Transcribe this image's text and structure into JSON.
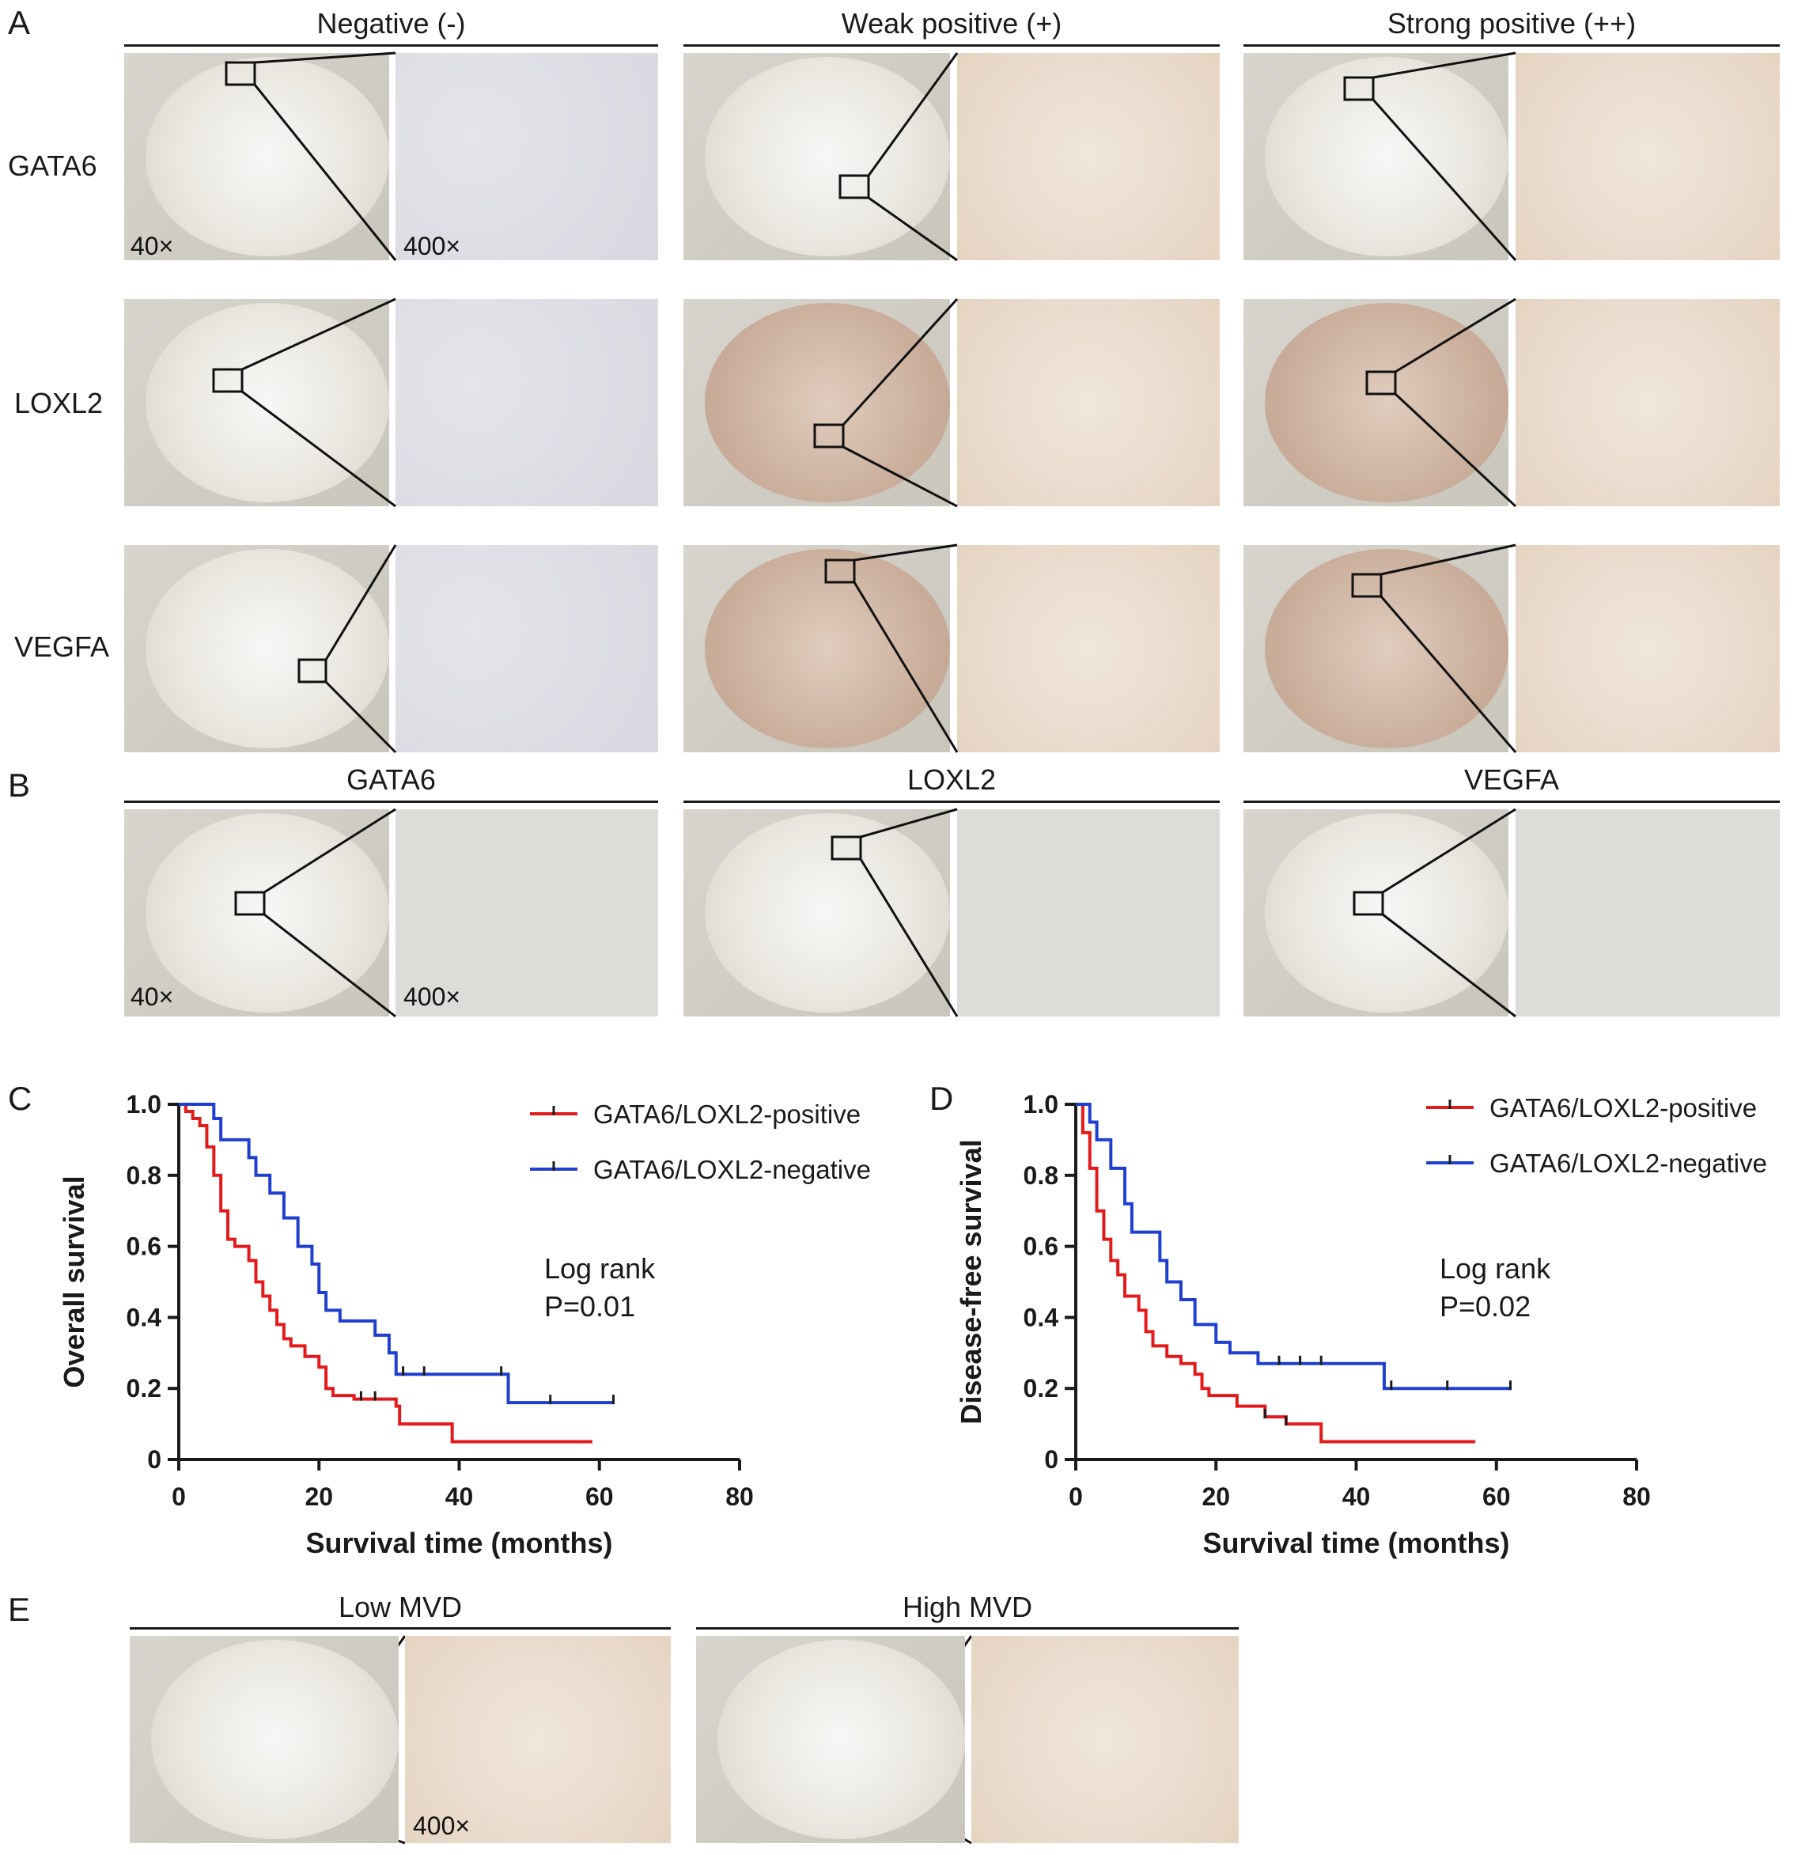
{
  "panel_labels": {
    "a": "A",
    "b": "B",
    "c": "C",
    "d": "D",
    "e": "E"
  },
  "panel_a": {
    "columns": [
      "Negative (-)",
      "Weak positive (+)",
      "Strong positive (++)"
    ],
    "rows": [
      "GATA6",
      "LOXL2",
      "VEGFA"
    ],
    "mag_low": "40×",
    "mag_high": "400×"
  },
  "panel_b": {
    "columns": [
      "GATA6",
      "LOXL2",
      "VEGFA"
    ],
    "mag_low": "40×",
    "mag_high": "400×"
  },
  "panel_e": {
    "columns": [
      "Low MVD",
      "High MVD"
    ],
    "mag_high": "400×"
  },
  "chart_data": [
    {
      "type": "line",
      "panel": "C",
      "xlabel": "Survival time (months)",
      "ylabel": "Overall survival",
      "xlim": [
        0,
        80
      ],
      "ylim": [
        0,
        1.0
      ],
      "xticks": [
        "0",
        "20",
        "40",
        "60",
        "80"
      ],
      "yticks": [
        "0",
        "0.2",
        "0.4",
        "0.6",
        "0.8",
        "1.0"
      ],
      "annotation": [
        "Log rank",
        "P=0.01"
      ],
      "legend_position": "top-right",
      "series": [
        {
          "name": "GATA6/LOXL2-positive",
          "color": "#e31a1c",
          "steps": [
            [
              0,
              1.0
            ],
            [
              1,
              0.98
            ],
            [
              2,
              0.96
            ],
            [
              3,
              0.94
            ],
            [
              4,
              0.88
            ],
            [
              5,
              0.8
            ],
            [
              6,
              0.7
            ],
            [
              7,
              0.62
            ],
            [
              8,
              0.6
            ],
            [
              10,
              0.56
            ],
            [
              11,
              0.5
            ],
            [
              12,
              0.46
            ],
            [
              13,
              0.42
            ],
            [
              14,
              0.38
            ],
            [
              15,
              0.34
            ],
            [
              16,
              0.32
            ],
            [
              18,
              0.29
            ],
            [
              20,
              0.26
            ],
            [
              21,
              0.2
            ],
            [
              22,
              0.18
            ],
            [
              25,
              0.17
            ],
            [
              31,
              0.15
            ],
            [
              31.5,
              0.1
            ],
            [
              39,
              0.05
            ],
            [
              59,
              0.05
            ]
          ],
          "end": 59,
          "censor": [
            26,
            28
          ]
        },
        {
          "name": "GATA6/LOXL2-negative",
          "color": "#1f3fcf",
          "steps": [
            [
              0,
              1.0
            ],
            [
              5,
              0.96
            ],
            [
              6,
              0.9
            ],
            [
              10,
              0.85
            ],
            [
              11,
              0.8
            ],
            [
              13,
              0.75
            ],
            [
              15,
              0.68
            ],
            [
              17,
              0.6
            ],
            [
              19,
              0.55
            ],
            [
              20,
              0.47
            ],
            [
              21,
              0.42
            ],
            [
              23,
              0.39
            ],
            [
              28,
              0.35
            ],
            [
              30,
              0.3
            ],
            [
              31,
              0.24
            ],
            [
              47,
              0.16
            ],
            [
              62,
              0.16
            ]
          ],
          "end": 62,
          "censor": [
            32,
            35,
            46,
            53,
            62
          ]
        }
      ]
    },
    {
      "type": "line",
      "panel": "D",
      "xlabel": "Survival time (months)",
      "ylabel": "Disease-free survival",
      "xlim": [
        0,
        80
      ],
      "ylim": [
        0,
        1.0
      ],
      "xticks": [
        "0",
        "20",
        "40",
        "60",
        "80"
      ],
      "yticks": [
        "0",
        "0.2",
        "0.4",
        "0.6",
        "0.8",
        "1.0"
      ],
      "annotation": [
        "Log rank",
        "P=0.02"
      ],
      "legend_position": "top-right",
      "series": [
        {
          "name": "GATA6/LOXL2-positive",
          "color": "#e31a1c",
          "steps": [
            [
              0,
              1.0
            ],
            [
              1,
              0.92
            ],
            [
              2,
              0.82
            ],
            [
              3,
              0.7
            ],
            [
              4,
              0.62
            ],
            [
              5,
              0.56
            ],
            [
              6,
              0.52
            ],
            [
              7,
              0.46
            ],
            [
              9,
              0.42
            ],
            [
              10,
              0.36
            ],
            [
              11,
              0.32
            ],
            [
              13,
              0.29
            ],
            [
              15,
              0.27
            ],
            [
              17,
              0.24
            ],
            [
              18,
              0.2
            ],
            [
              19,
              0.18
            ],
            [
              23,
              0.15
            ],
            [
              27,
              0.12
            ],
            [
              30,
              0.1
            ],
            [
              35,
              0.05
            ],
            [
              57,
              0.05
            ]
          ],
          "end": 57,
          "censor": [
            27,
            30
          ]
        },
        {
          "name": "GATA6/LOXL2-negative",
          "color": "#1f3fcf",
          "steps": [
            [
              0,
              1.0
            ],
            [
              2,
              0.95
            ],
            [
              3,
              0.9
            ],
            [
              5,
              0.82
            ],
            [
              7,
              0.72
            ],
            [
              8,
              0.64
            ],
            [
              12,
              0.56
            ],
            [
              13,
              0.5
            ],
            [
              15,
              0.45
            ],
            [
              17,
              0.38
            ],
            [
              20,
              0.33
            ],
            [
              22,
              0.3
            ],
            [
              26,
              0.27
            ],
            [
              44,
              0.2
            ],
            [
              62,
              0.2
            ]
          ],
          "end": 62,
          "censor": [
            29,
            32,
            35,
            45,
            53,
            62
          ]
        }
      ]
    }
  ]
}
